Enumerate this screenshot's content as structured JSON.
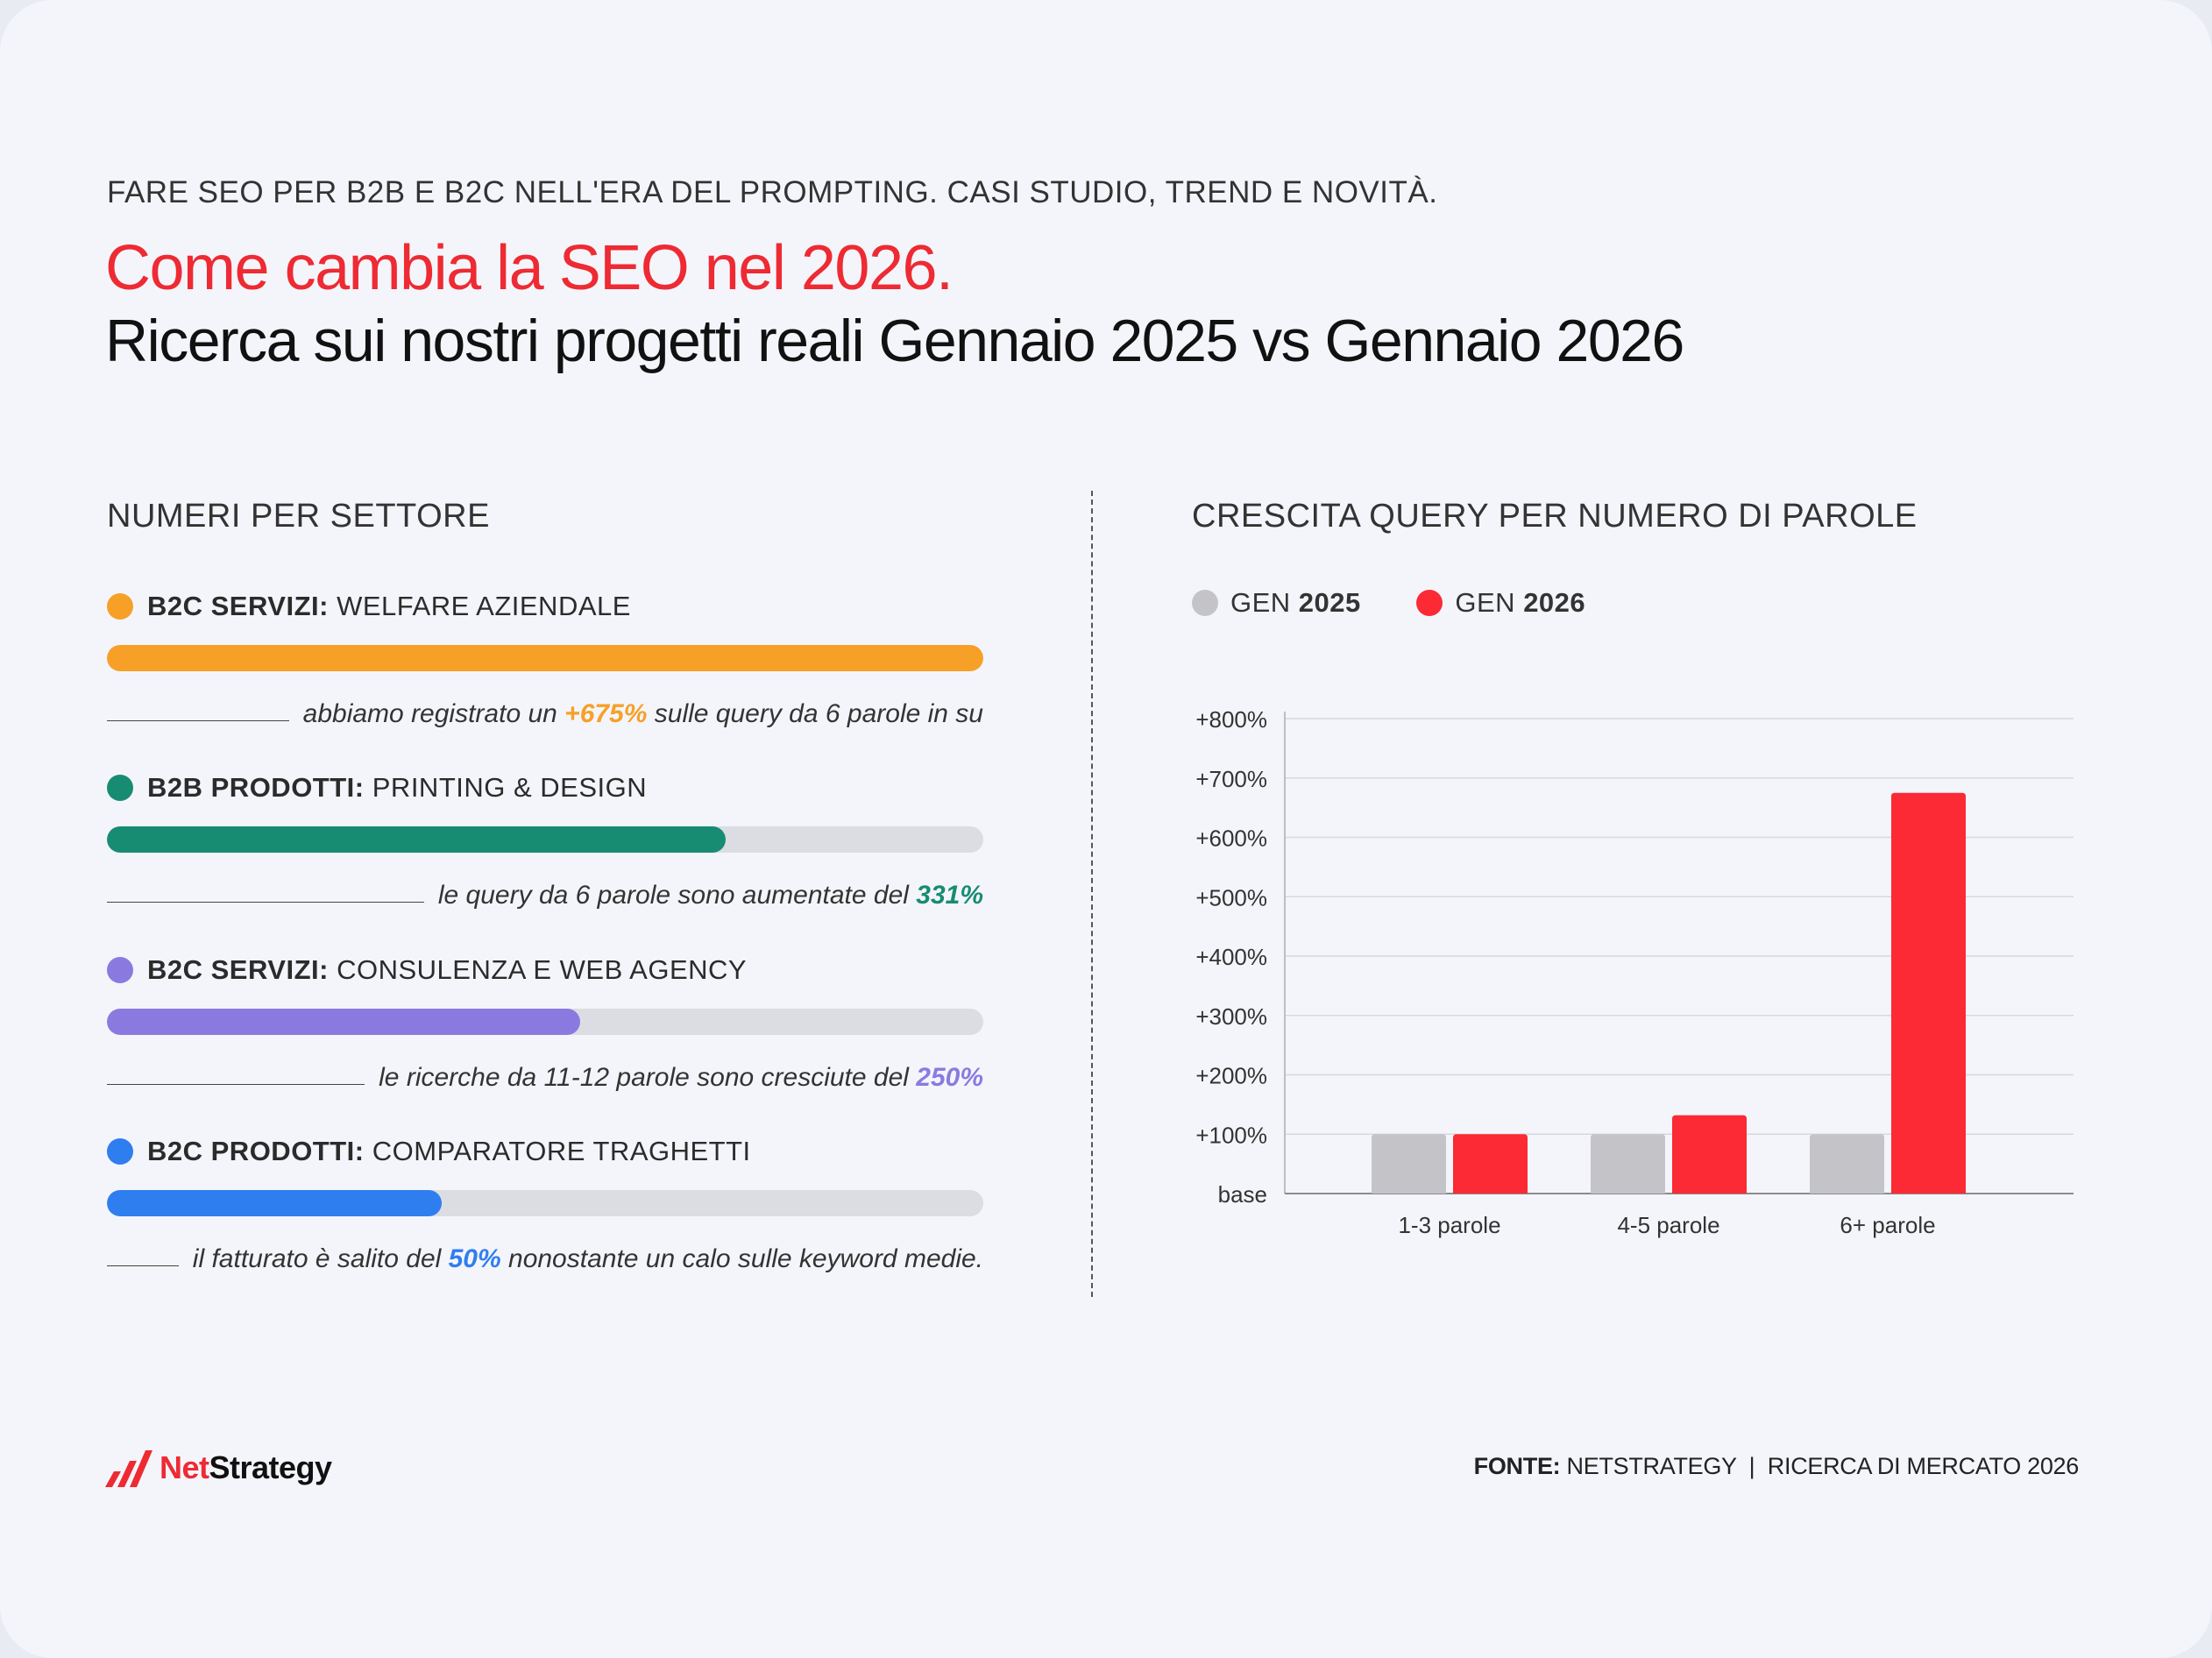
{
  "header": {
    "kicker": "FARE SEO PER B2B E B2C NELL'ERA DEL PROMPTING. CASI STUDIO, TREND E NOVITÀ.",
    "title_red": "Come cambia la SEO nel 2026.",
    "title_black": "Ricerca sui nostri progetti reali Gennaio 2025 vs Gennaio 2026"
  },
  "left": {
    "section_title": "NUMERI PER SETTORE",
    "sectors": [
      {
        "bold": "B2C SERVIZI:",
        "label": "WELFARE AZIENDALE",
        "color": "#f7a027",
        "fill": 1.0,
        "caption_before": "abbiamo registrato un ",
        "caption_pct": "+675%",
        "caption_after": " sulle query da 6 parole in su"
      },
      {
        "bold": "B2B PRODOTTI:",
        "label": "PRINTING & DESIGN",
        "color": "#178c72",
        "fill": 0.706,
        "caption_before": "le query da 6 parole sono aumentate del ",
        "caption_pct": "331%",
        "caption_after": ""
      },
      {
        "bold": "B2C SERVIZI:",
        "label": "CONSULENZA E WEB AGENCY",
        "color": "#8a7ae0",
        "fill": 0.54,
        "caption_before": "le ricerche da 11-12 parole sono cresciute del ",
        "caption_pct": "250%",
        "caption_after": ""
      },
      {
        "bold": "B2C PRODOTTI:",
        "label": "COMPARATORE TRAGHETTI",
        "color": "#2f7ef0",
        "fill": 0.382,
        "caption_before": "il fatturato è salito del ",
        "caption_pct": "50%",
        "caption_after": " nonostante un calo sulle keyword medie."
      }
    ]
  },
  "right": {
    "section_title": "CRESCITA QUERY PER NUMERO DI PAROLE",
    "legend": [
      {
        "prefix": "GEN ",
        "year": "2025",
        "color": "#c4c3c8"
      },
      {
        "prefix": "GEN ",
        "year": "2026",
        "color": "#fb2a35"
      }
    ]
  },
  "chart_data": {
    "type": "bar",
    "categories": [
      "1-3 parole",
      "4-5 parole",
      "6+ parole"
    ],
    "series": [
      {
        "name": "GEN 2025",
        "values": [
          100,
          100,
          100
        ],
        "color": "#c4c3c8"
      },
      {
        "name": "GEN 2026",
        "values": [
          100,
          132,
          675
        ],
        "color": "#fb2a35"
      }
    ],
    "yticks": [
      {
        "value": 0,
        "label": "base"
      },
      {
        "value": 100,
        "label": "+100%"
      },
      {
        "value": 200,
        "label": "+200%"
      },
      {
        "value": 300,
        "label": "+300%"
      },
      {
        "value": 400,
        "label": "+400%"
      },
      {
        "value": 500,
        "label": "+500%"
      },
      {
        "value": 600,
        "label": "+600%"
      },
      {
        "value": 700,
        "label": "+700%"
      },
      {
        "value": 800,
        "label": "+800%"
      }
    ],
    "ylim": [
      0,
      800
    ],
    "grid": true,
    "legend_position": "top-left",
    "title": "",
    "xlabel": "",
    "ylabel": ""
  },
  "footer": {
    "source_bold": "FONTE:",
    "source_text": " NETSTRATEGY  |  RICERCA DI MERCATO 2026",
    "logo_net": "Net",
    "logo_strategy": "Strategy"
  }
}
